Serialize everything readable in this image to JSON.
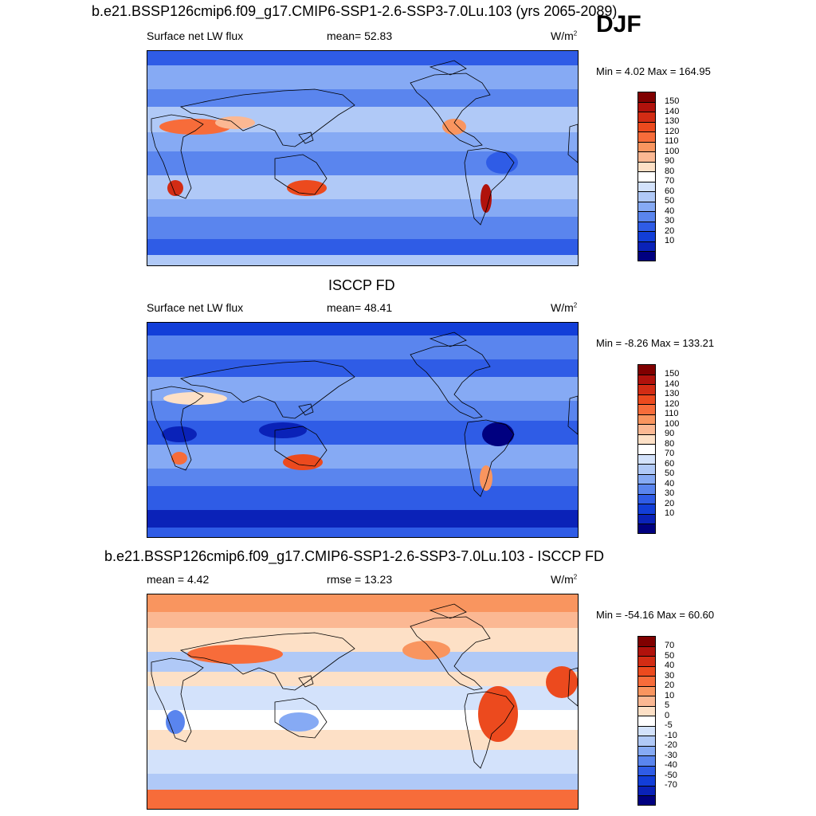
{
  "header": {
    "title": "b.e21.BSSP126cmip6.f09_g17.CMIP6-SSP1-2.6-SSP3-7.0Lu.103 (yrs 2065-2089)",
    "season": "DJF"
  },
  "panels": [
    {
      "id": "model",
      "title": "",
      "left_text": "Surface net LW flux",
      "center_text": "mean=  52.83",
      "units_base": "W/m",
      "units_exp": "2",
      "minmax": "Min =   4.02 Max = 164.95",
      "colorbar_labels": [
        "150",
        "140",
        "130",
        "120",
        "110",
        "100",
        "90",
        "80",
        "70",
        "60",
        "50",
        "40",
        "30",
        "20",
        "10"
      ],
      "colorbar_colors": [
        "#800000",
        "#b0120c",
        "#d22c14",
        "#ec4a1e",
        "#f76c3a",
        "#f9955f",
        "#fbb893",
        "#fde0c6",
        "#ffffff",
        "#d3e2fb",
        "#b0c9f7",
        "#86aaf4",
        "#5a85ee",
        "#2f5ce6",
        "#123ed8",
        "#0a22b8",
        "#000080"
      ],
      "map_style": "model"
    },
    {
      "id": "obs",
      "title": "ISCCP FD",
      "left_text": "Surface net LW flux",
      "center_text": "mean=  48.41",
      "units_base": "W/m",
      "units_exp": "2",
      "minmax": "Min =  -8.26 Max = 133.21",
      "colorbar_labels": [
        "150",
        "140",
        "130",
        "120",
        "110",
        "100",
        "90",
        "80",
        "70",
        "60",
        "50",
        "40",
        "30",
        "20",
        "10"
      ],
      "colorbar_colors": [
        "#800000",
        "#b0120c",
        "#d22c14",
        "#ec4a1e",
        "#f76c3a",
        "#f9955f",
        "#fbb893",
        "#fde0c6",
        "#ffffff",
        "#d3e2fb",
        "#b0c9f7",
        "#86aaf4",
        "#5a85ee",
        "#2f5ce6",
        "#123ed8",
        "#0a22b8",
        "#000080"
      ],
      "map_style": "obs"
    },
    {
      "id": "diff",
      "title": "b.e21.BSSP126cmip6.f09_g17.CMIP6-SSP1-2.6-SSP3-7.0Lu.103 - ISCCP FD",
      "left_text": "mean =   4.42",
      "center_text": "rmse =  13.23",
      "units_base": "W/m",
      "units_exp": "2",
      "minmax": "Min = -54.16 Max =  60.60",
      "colorbar_labels": [
        "70",
        "50",
        "40",
        "30",
        "20",
        "10",
        "5",
        "0",
        "-5",
        "-10",
        "-20",
        "-30",
        "-40",
        "-50",
        "-70"
      ],
      "colorbar_colors": [
        "#800000",
        "#b0120c",
        "#d22c14",
        "#ec4a1e",
        "#f76c3a",
        "#f9955f",
        "#fbb893",
        "#fde0c6",
        "#ffffff",
        "#d3e2fb",
        "#b0c9f7",
        "#86aaf4",
        "#5a85ee",
        "#2f5ce6",
        "#123ed8",
        "#0a22b8",
        "#000080"
      ],
      "map_style": "diff"
    }
  ]
}
